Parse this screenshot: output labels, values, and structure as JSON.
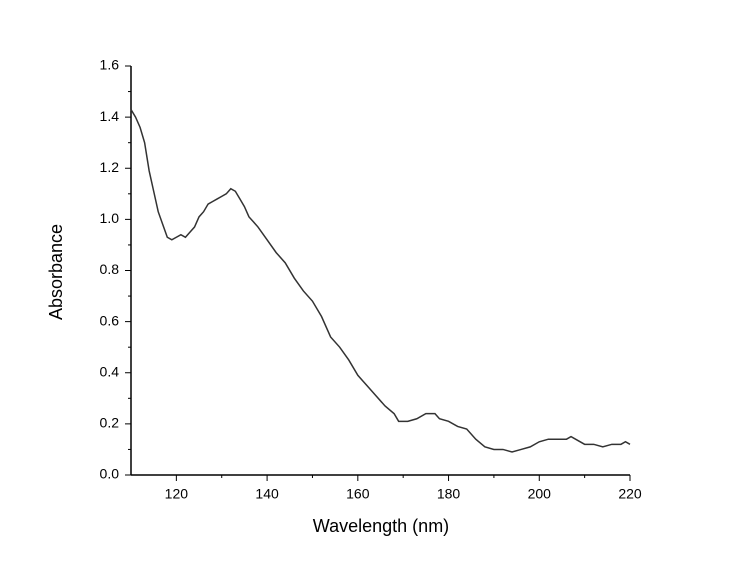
{
  "chart_data": {
    "type": "line",
    "x_label": "Wavelength (nm)",
    "y_label": "Absorbance",
    "xlim": [
      110,
      220
    ],
    "ylim": [
      0,
      1.6
    ],
    "xticks": [
      120,
      140,
      160,
      180,
      200,
      220
    ],
    "yticks": [
      {
        "value": 0,
        "label": "0.0"
      },
      0.2,
      0.4,
      0.6,
      0.8,
      {
        "value": 1,
        "label": "1.0"
      },
      1.2,
      1.4,
      1.6
    ],
    "series": [
      {
        "color": "#333333",
        "x": [
          110,
          111,
          112,
          113,
          114,
          115,
          116,
          117,
          118,
          119,
          120,
          121,
          122,
          123,
          124,
          125,
          126,
          127,
          128,
          129,
          130,
          131,
          132,
          133,
          134,
          135,
          136,
          137,
          138,
          140,
          142,
          144,
          146,
          148,
          150,
          152,
          154,
          156,
          158,
          160,
          162,
          164,
          166,
          168,
          169,
          171,
          173,
          175,
          177,
          178,
          180,
          182,
          184,
          186,
          188,
          190,
          192,
          194,
          196,
          198,
          200,
          202,
          204,
          206,
          207,
          208,
          210,
          212,
          214,
          216,
          218,
          219,
          220
        ],
        "values": [
          1.43,
          1.4,
          1.36,
          1.3,
          1.19,
          1.11,
          1.03,
          0.98,
          0.93,
          0.92,
          0.93,
          0.94,
          0.93,
          0.95,
          0.97,
          1.01,
          1.03,
          1.06,
          1.07,
          1.08,
          1.09,
          1.1,
          1.12,
          1.11,
          1.08,
          1.05,
          1.01,
          0.99,
          0.97,
          0.92,
          0.87,
          0.83,
          0.77,
          0.72,
          0.68,
          0.62,
          0.54,
          0.5,
          0.45,
          0.39,
          0.35,
          0.31,
          0.27,
          0.24,
          0.21,
          0.21,
          0.22,
          0.24,
          0.24,
          0.22,
          0.21,
          0.19,
          0.18,
          0.14,
          0.11,
          0.1,
          0.1,
          0.09,
          0.1,
          0.11,
          0.13,
          0.14,
          0.14,
          0.14,
          0.15,
          0.14,
          0.12,
          0.12,
          0.11,
          0.12,
          0.12,
          0.13,
          0.12
        ]
      }
    ]
  }
}
